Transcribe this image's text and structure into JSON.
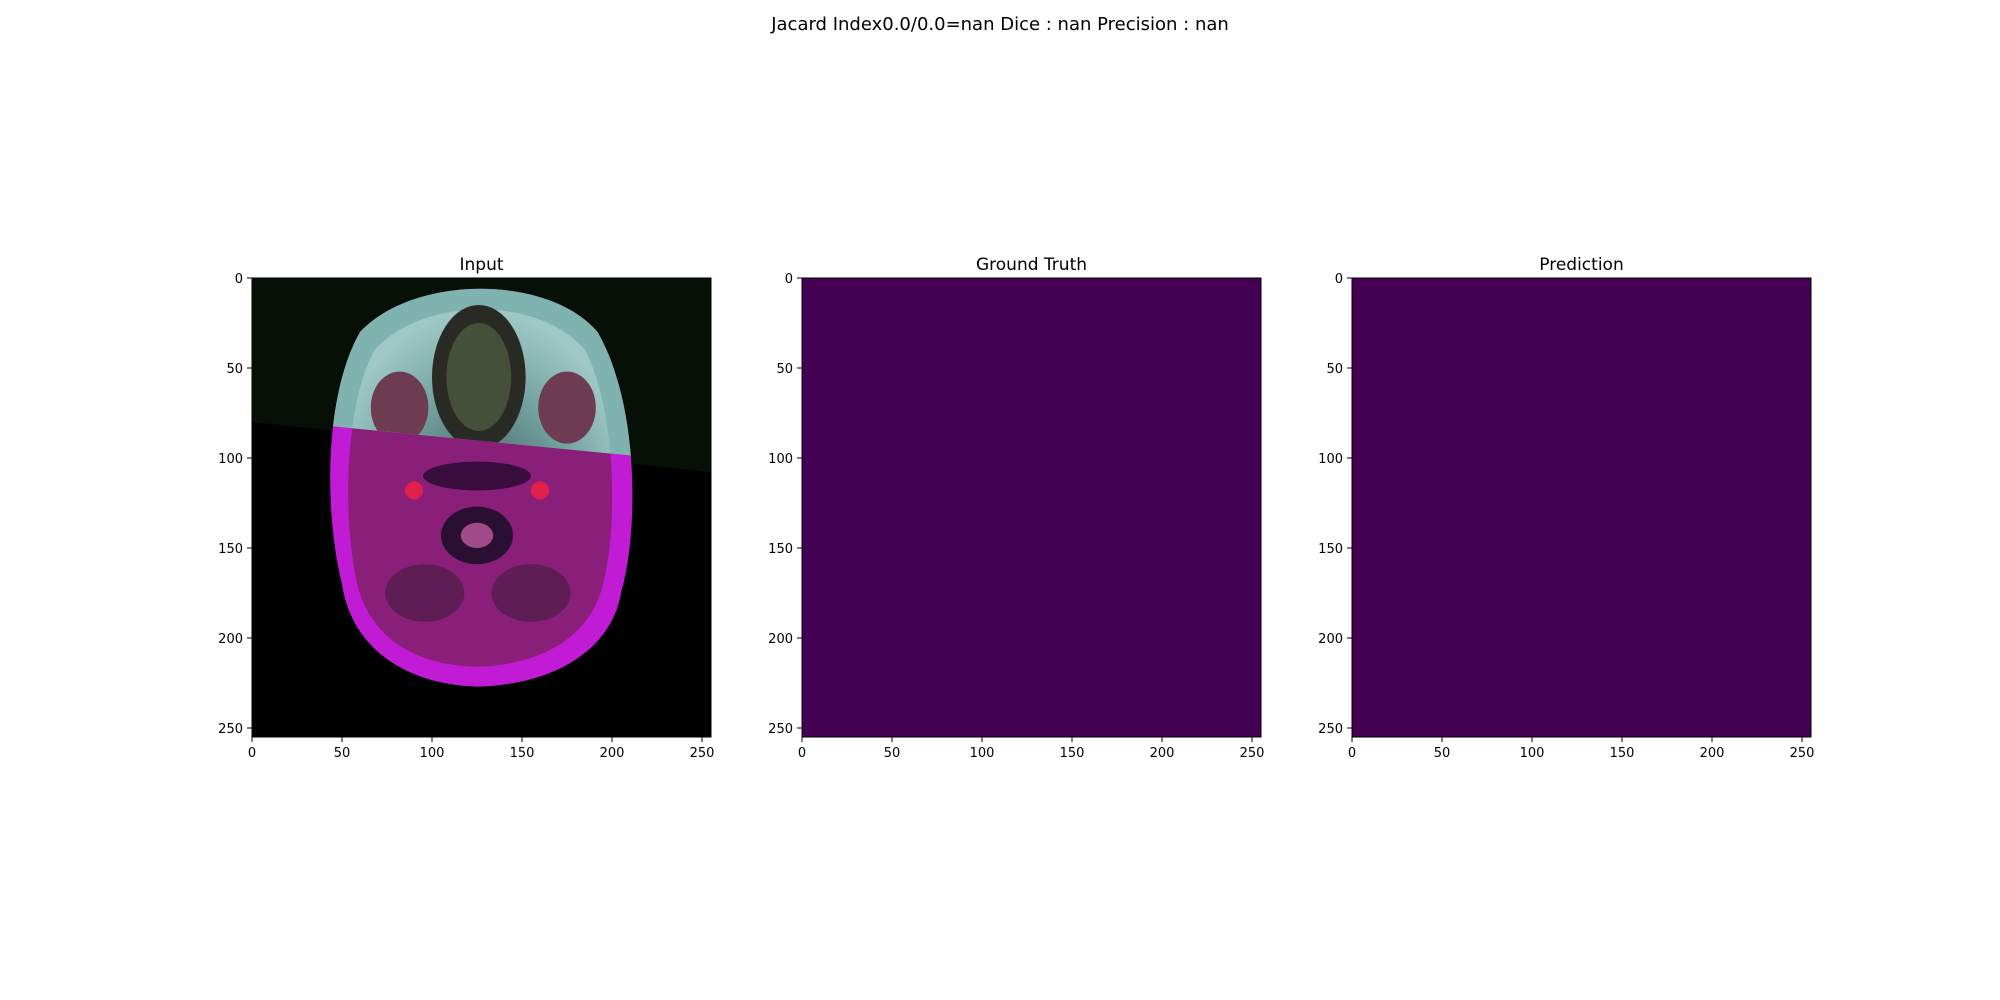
{
  "figure": {
    "suptitle": "Jacard Index0.0/0.0=nan Dice : nan Precision : nan"
  },
  "chart_data": [
    {
      "type": "heatmap",
      "title": "Input",
      "image_kind": "mri-overlay",
      "xlim": [
        0,
        255
      ],
      "ylim": [
        255,
        0
      ],
      "x_ticks": [
        0,
        50,
        100,
        150,
        200,
        250
      ],
      "y_ticks": [
        0,
        50,
        100,
        150,
        200,
        250
      ],
      "x_tick_labels": [
        "0",
        "50",
        "100",
        "150",
        "200",
        "250"
      ],
      "y_tick_labels": [
        "0",
        "50",
        "100",
        "150",
        "200",
        "250"
      ],
      "colors": {
        "background": "#000000",
        "upper": "#7fb3b0",
        "lower": "#8a1f7a",
        "magenta": "#c21bd6"
      }
    },
    {
      "type": "heatmap",
      "title": "Ground Truth",
      "image_kind": "uniform",
      "uniform_value": 0,
      "xlim": [
        0,
        255
      ],
      "ylim": [
        255,
        0
      ],
      "x_ticks": [
        0,
        50,
        100,
        150,
        200,
        250
      ],
      "y_ticks": [
        0,
        50,
        100,
        150,
        200,
        250
      ],
      "x_tick_labels": [
        "0",
        "50",
        "100",
        "150",
        "200",
        "250"
      ],
      "y_tick_labels": [
        "0",
        "50",
        "100",
        "150",
        "200",
        "250"
      ],
      "colors": {
        "fill": "#440154"
      }
    },
    {
      "type": "heatmap",
      "title": "Prediction",
      "image_kind": "uniform",
      "uniform_value": 0,
      "xlim": [
        0,
        255
      ],
      "ylim": [
        255,
        0
      ],
      "x_ticks": [
        0,
        50,
        100,
        150,
        200,
        250
      ],
      "y_ticks": [
        0,
        50,
        100,
        150,
        200,
        250
      ],
      "x_tick_labels": [
        "0",
        "50",
        "100",
        "150",
        "200",
        "250"
      ],
      "y_tick_labels": [
        "0",
        "50",
        "100",
        "150",
        "200",
        "250"
      ],
      "colors": {
        "fill": "#440154"
      }
    }
  ]
}
